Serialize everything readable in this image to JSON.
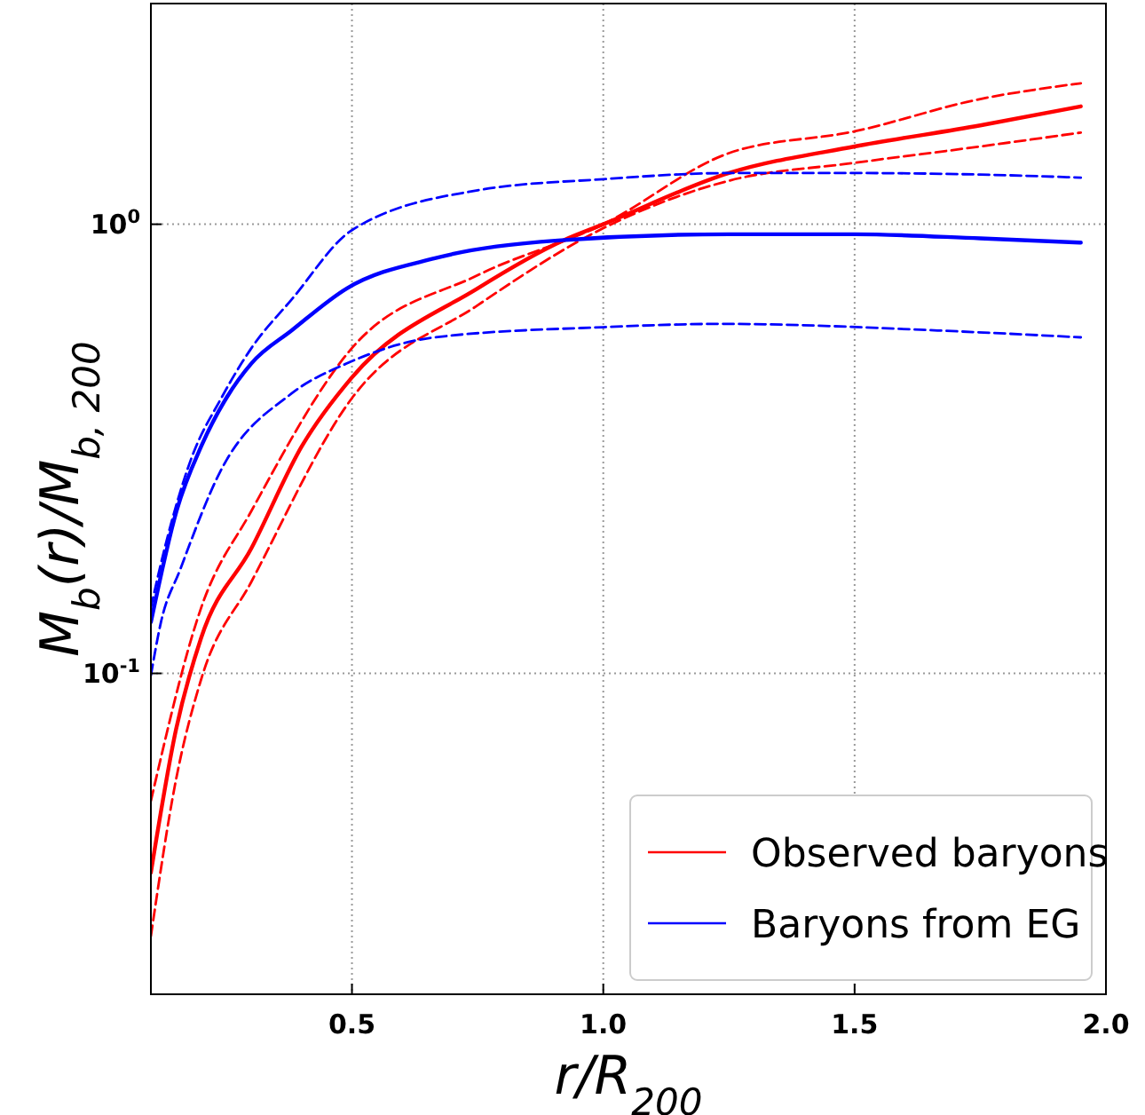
{
  "chart_data": {
    "type": "line",
    "xlabel": "r/R$_{200}$",
    "ylabel": "M$_{b}$(r)/M$_{b, 200}$",
    "log": "y",
    "grid": true,
    "legend": "bottom right",
    "xlim": [
      0.1,
      2.0
    ],
    "ylim": [
      0.0193,
      3.1
    ],
    "xticks": [
      0.5,
      {
        "value": 1.0,
        "label": "1.0"
      },
      1.5,
      {
        "value": 2.0,
        "label": "2.0"
      }
    ],
    "yticks": [
      {
        "value": 0.1,
        "label": "10$^{-1}$"
      },
      {
        "value": 1,
        "label": "10$^{0}$"
      }
    ],
    "series": [
      {
        "name": "Observed baryons",
        "color": "#ff0000",
        "line_style": "solid",
        "x": [
          0.1,
          0.15,
          0.2,
          0.3,
          0.4,
          0.5,
          0.75,
          0.92,
          1.0,
          1.25,
          1.5,
          1.75,
          1.95
        ],
        "values": [
          0.036,
          0.075,
          0.12,
          0.19,
          0.32,
          0.456,
          0.72,
          0.92,
          1.0,
          1.3,
          1.49,
          1.66,
          1.83
        ]
      },
      {
        "color": "#ff0000",
        "line_style": "dashed",
        "x": [
          0.1,
          0.2,
          0.3,
          0.5,
          0.75,
          1.0,
          1.25,
          1.5,
          1.75,
          1.95
        ],
        "values": [
          0.052,
          0.14,
          0.23,
          0.53,
          0.77,
          1.0,
          1.44,
          1.61,
          1.9,
          2.06
        ]
      },
      {
        "color": "#ff0000",
        "line_style": "dashed",
        "x": [
          0.1,
          0.15,
          0.2,
          0.3,
          0.5,
          0.75,
          1.0,
          1.25,
          1.5,
          1.75,
          1.95
        ],
        "values": [
          0.026,
          0.058,
          0.097,
          0.16,
          0.41,
          0.66,
          0.98,
          1.25,
          1.37,
          1.49,
          1.6
        ]
      },
      {
        "name": "Baryons from EG",
        "color": "#0000ff",
        "line_style": "solid",
        "x": [
          0.1,
          0.151,
          0.2,
          0.25,
          0.3,
          0.38,
          0.49,
          0.665,
          0.91,
          1.25,
          1.5,
          1.75,
          1.95
        ],
        "values": [
          0.13,
          0.23,
          0.32,
          0.41,
          0.49,
          0.58,
          0.72,
          0.84,
          0.92,
          0.95,
          0.95,
          0.93,
          0.91
        ]
      },
      {
        "color": "#0000ff",
        "line_style": "dashed",
        "x": [
          0.1,
          0.117,
          0.18,
          0.24,
          0.3,
          0.38,
          0.5,
          0.75,
          1.0,
          1.25,
          1.5,
          1.75,
          1.95
        ],
        "values": [
          0.14,
          0.17,
          0.3,
          0.41,
          0.53,
          0.68,
          0.97,
          1.19,
          1.26,
          1.3,
          1.3,
          1.29,
          1.27
        ]
      },
      {
        "color": "#0000ff",
        "line_style": "dashed",
        "x": [
          0.1,
          0.12,
          0.158,
          0.237,
          0.38,
          0.49,
          0.665,
          1.0,
          1.237,
          1.665,
          1.95
        ],
        "values": [
          0.099,
          0.13,
          0.17,
          0.28,
          0.42,
          0.49,
          0.56,
          0.59,
          0.6,
          0.58,
          0.56
        ]
      }
    ]
  }
}
